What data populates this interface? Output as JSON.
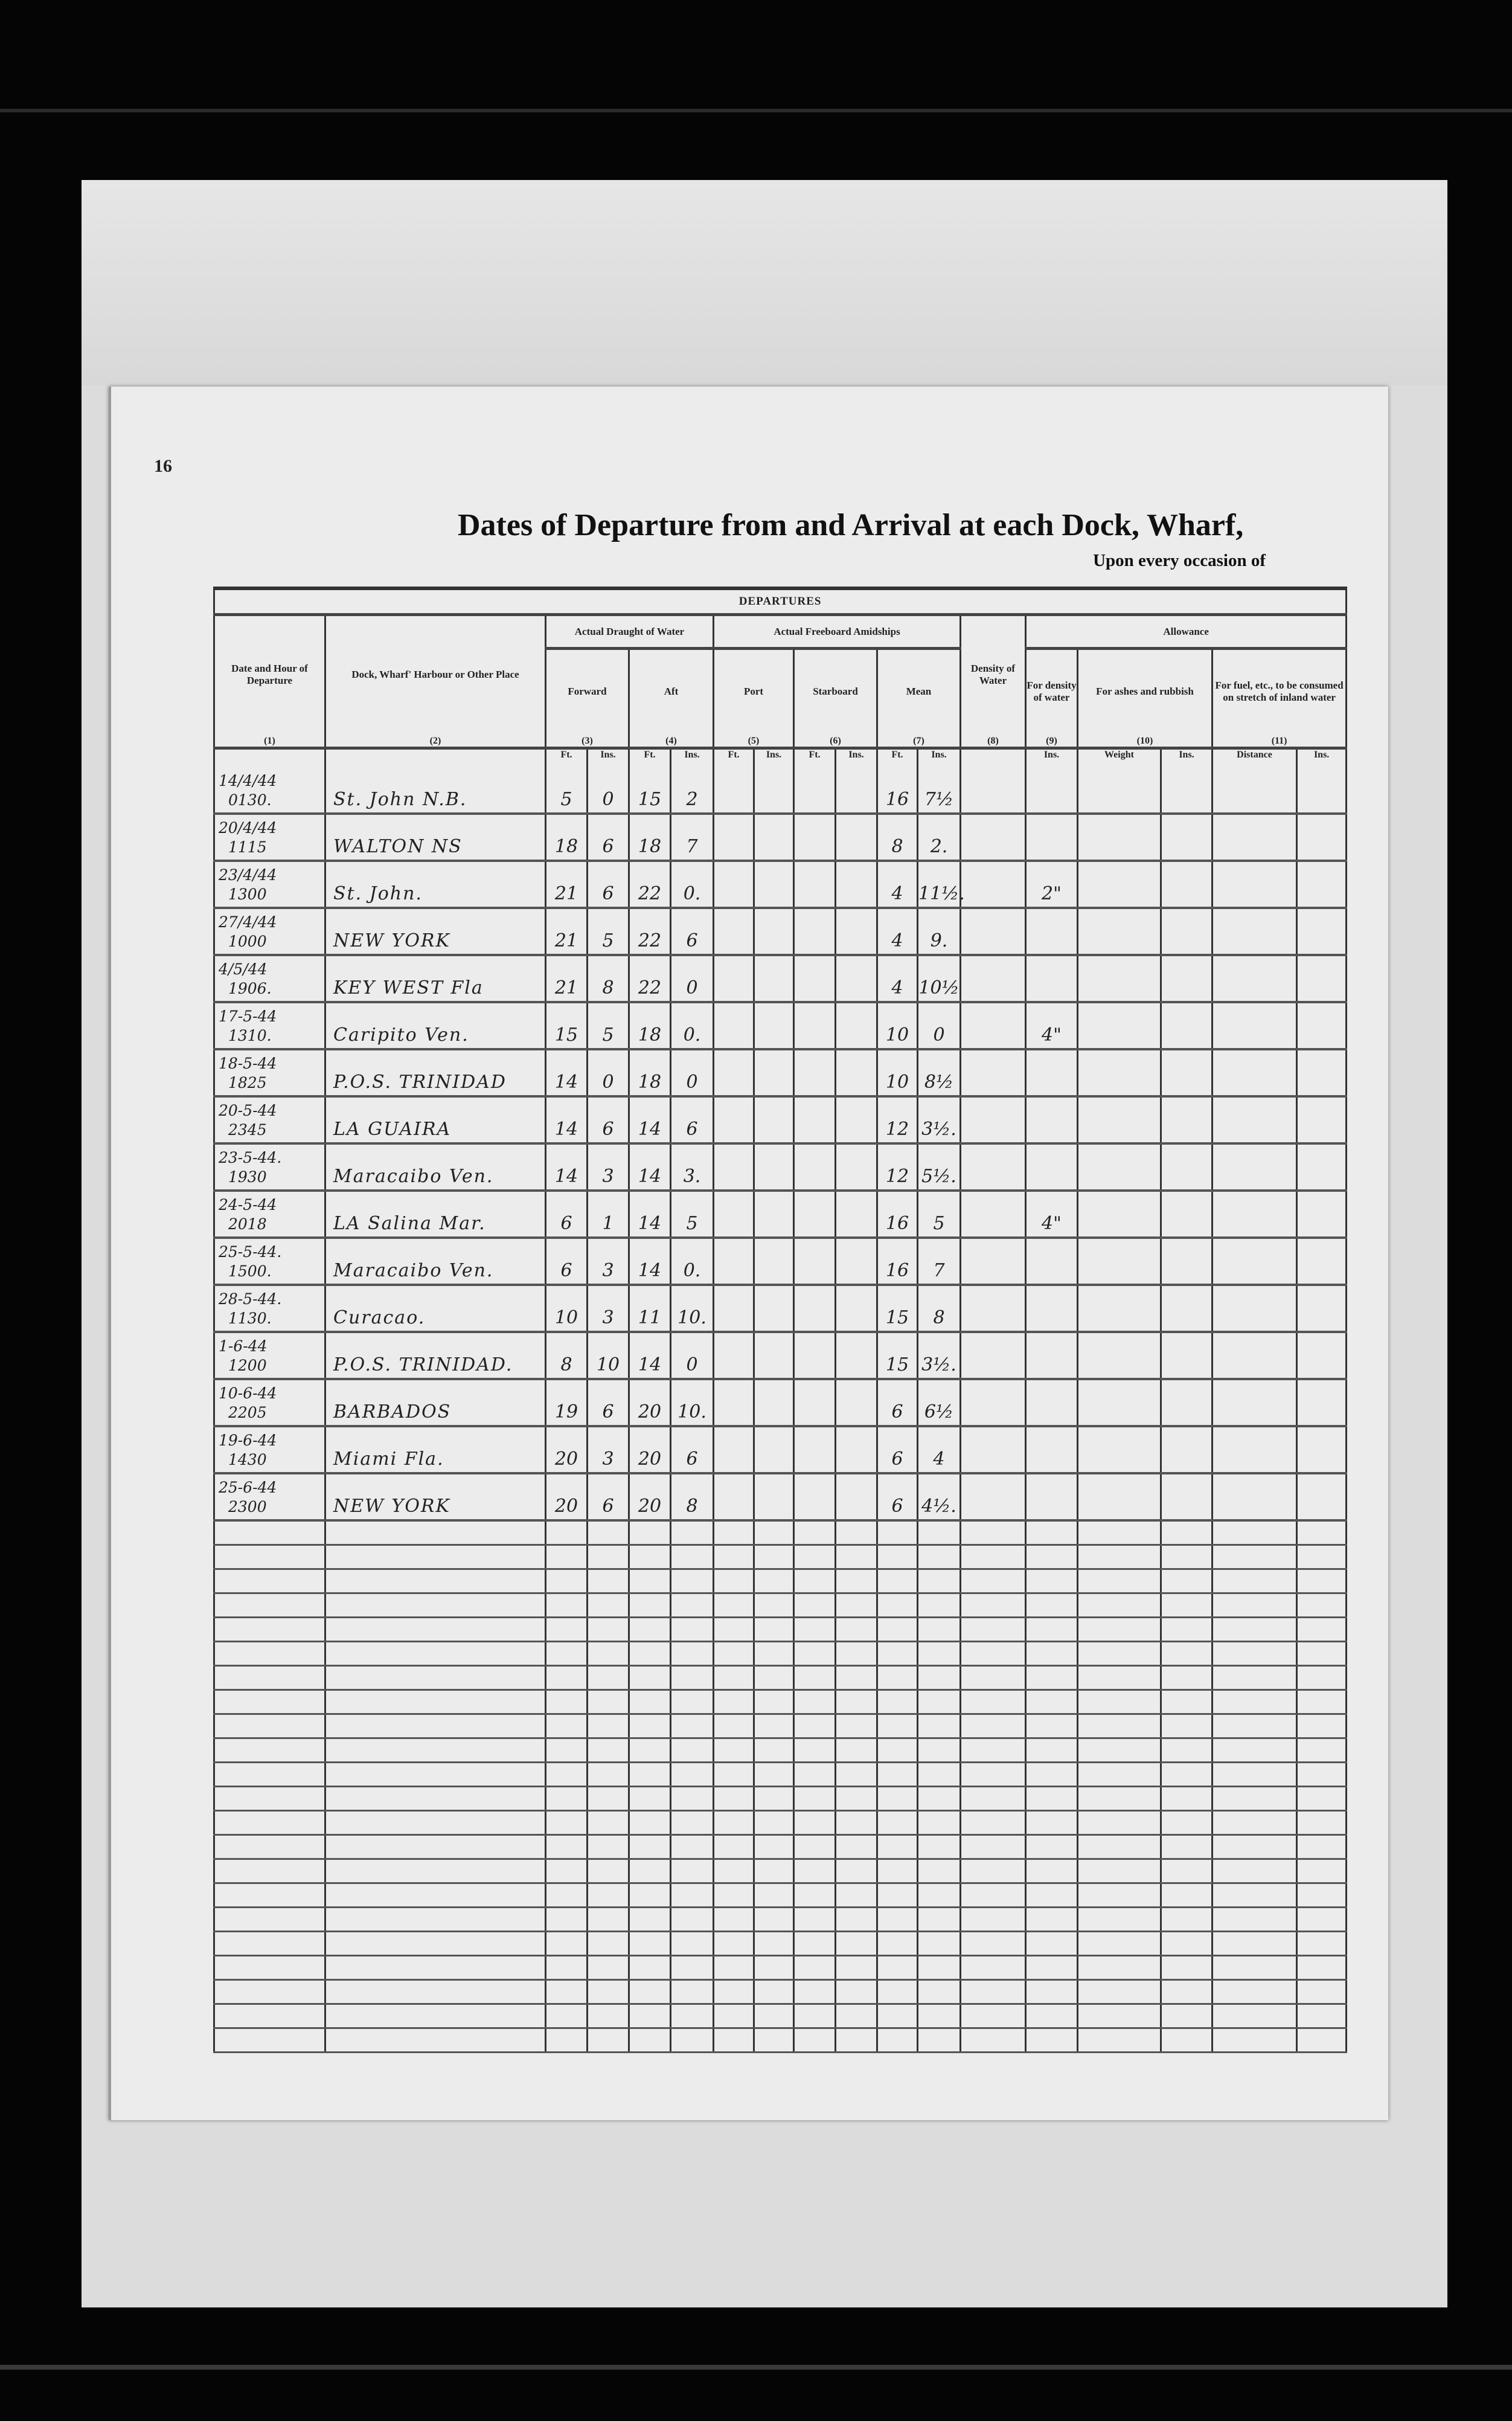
{
  "page": {
    "number": "16",
    "title": "Dates of Departure from and Arrival at each Dock, Wharf,",
    "subtitle": "Upon every occasion of"
  },
  "table": {
    "section": "DEPARTURES",
    "headers": {
      "date": "Date and Hour of Departure",
      "dock": "Dock, Wharf' Harbour or Other Place",
      "draught": "Actual Draught of Water",
      "freeboard": "Actual Freeboard Amidships",
      "density": "Density of Water",
      "allowance": "Allowance",
      "forward": "Forward",
      "aft": "Aft",
      "port": "Port",
      "starboard": "Starboard",
      "mean": "Mean",
      "for_density": "For density of water",
      "for_ashes": "For ashes and rubbish",
      "for_fuel": "For fuel, etc., to be consumed on stretch of inland water"
    },
    "col_numbers": [
      "(1)",
      "(2)",
      "(3)",
      "(4)",
      "(5)",
      "(6)",
      "(7)",
      "(8)",
      "(9)",
      "(10)",
      "(11)"
    ],
    "units": {
      "ft": "Ft.",
      "ins": "Ins.",
      "weight": "Weight",
      "distance": "Distance"
    },
    "rows": [
      {
        "date": "14/4/44",
        "time": "0130.",
        "place": "St. John N.B.",
        "fwd_ft": "5",
        "fwd_in": "0",
        "aft_ft": "15",
        "aft_in": "2",
        "mean_ft": "16",
        "mean_in": "7½",
        "allow": ""
      },
      {
        "date": "20/4/44",
        "time": "1115",
        "place": "WALTON NS",
        "fwd_ft": "18",
        "fwd_in": "6",
        "aft_ft": "18",
        "aft_in": "7",
        "mean_ft": "8",
        "mean_in": "2.",
        "allow": ""
      },
      {
        "date": "23/4/44",
        "time": "1300",
        "place": "St. John.",
        "fwd_ft": "21",
        "fwd_in": "6",
        "aft_ft": "22",
        "aft_in": "0.",
        "mean_ft": "4",
        "mean_in": "11½.",
        "allow": "2\""
      },
      {
        "date": "27/4/44",
        "time": "1000",
        "place": "NEW YORK",
        "fwd_ft": "21",
        "fwd_in": "5",
        "aft_ft": "22",
        "aft_in": "6",
        "mean_ft": "4",
        "mean_in": "9.",
        "allow": ""
      },
      {
        "date": "4/5/44",
        "time": "1906.",
        "place": "KEY WEST Fla",
        "fwd_ft": "21",
        "fwd_in": "8",
        "aft_ft": "22",
        "aft_in": "0",
        "mean_ft": "4",
        "mean_in": "10½",
        "allow": ""
      },
      {
        "date": "17-5-44",
        "time": "1310.",
        "place": "Caripito Ven.",
        "fwd_ft": "15",
        "fwd_in": "5",
        "aft_ft": "18",
        "aft_in": "0.",
        "mean_ft": "10",
        "mean_in": "0",
        "allow": "4\""
      },
      {
        "date": "18-5-44",
        "time": "1825",
        "place": "P.O.S. TRINIDAD",
        "fwd_ft": "14",
        "fwd_in": "0",
        "aft_ft": "18",
        "aft_in": "0",
        "mean_ft": "10",
        "mean_in": "8½",
        "allow": ""
      },
      {
        "date": "20-5-44",
        "time": "2345",
        "place": "LA GUAIRA",
        "fwd_ft": "14",
        "fwd_in": "6",
        "aft_ft": "14",
        "aft_in": "6",
        "mean_ft": "12",
        "mean_in": "3½.",
        "allow": ""
      },
      {
        "date": "23-5-44.",
        "time": "1930",
        "place": "Maracaibo Ven.",
        "fwd_ft": "14",
        "fwd_in": "3",
        "aft_ft": "14",
        "aft_in": "3.",
        "mean_ft": "12",
        "mean_in": "5½.",
        "allow": ""
      },
      {
        "date": "24-5-44",
        "time": "2018",
        "place": "LA Salina Mar.",
        "fwd_ft": "6",
        "fwd_in": "1",
        "aft_ft": "14",
        "aft_in": "5",
        "mean_ft": "16",
        "mean_in": "5",
        "allow": "4\""
      },
      {
        "date": "25-5-44.",
        "time": "1500.",
        "place": "Maracaibo Ven.",
        "fwd_ft": "6",
        "fwd_in": "3",
        "aft_ft": "14",
        "aft_in": "0.",
        "mean_ft": "16",
        "mean_in": "7",
        "allow": ""
      },
      {
        "date": "28-5-44.",
        "time": "1130.",
        "place": "Curacao.",
        "fwd_ft": "10",
        "fwd_in": "3",
        "aft_ft": "11",
        "aft_in": "10.",
        "mean_ft": "15",
        "mean_in": "8",
        "allow": ""
      },
      {
        "date": "1-6-44",
        "time": "1200",
        "place": "P.O.S. TRINIDAD.",
        "fwd_ft": "8",
        "fwd_in": "10",
        "aft_ft": "14",
        "aft_in": "0",
        "mean_ft": "15",
        "mean_in": "3½.",
        "allow": ""
      },
      {
        "date": "10-6-44",
        "time": "2205",
        "place": "BARBADOS",
        "fwd_ft": "19",
        "fwd_in": "6",
        "aft_ft": "20",
        "aft_in": "10.",
        "mean_ft": "6",
        "mean_in": "6½",
        "allow": ""
      },
      {
        "date": "19-6-44",
        "time": "1430",
        "place": "Miami Fla.",
        "fwd_ft": "20",
        "fwd_in": "3",
        "aft_ft": "20",
        "aft_in": "6",
        "mean_ft": "6",
        "mean_in": "4",
        "allow": ""
      },
      {
        "date": "25-6-44",
        "time": "2300",
        "place": "NEW YORK",
        "fwd_ft": "20",
        "fwd_in": "6",
        "aft_ft": "20",
        "aft_in": "8",
        "mean_ft": "6",
        "mean_in": "4½.",
        "allow": ""
      }
    ]
  }
}
